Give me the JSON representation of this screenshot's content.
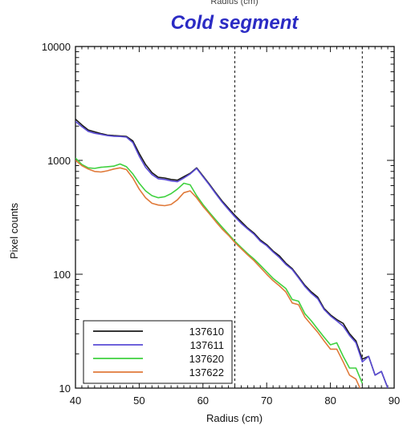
{
  "cut_off_text": "Radius (cm)",
  "chart_data": {
    "type": "line",
    "title": "Cold segment",
    "xlabel": "Radius (cm)",
    "ylabel": "Pixel counts",
    "xlim": [
      40,
      90
    ],
    "ylim": [
      10,
      10000
    ],
    "yscale": "log",
    "x_ticks": [
      40,
      50,
      60,
      70,
      80,
      90
    ],
    "y_ticks": [
      {
        "value": 10,
        "label": "10"
      },
      {
        "value": 100,
        "label": "100"
      },
      {
        "value": 1000,
        "label": "1000"
      },
      {
        "value": 10000,
        "label": "10000"
      }
    ],
    "vlines": [
      65,
      85
    ],
    "legend_position": "bottom-left",
    "series": [
      {
        "name": "137610",
        "color": "#1a1a1a",
        "x": [
          40,
          41,
          42,
          43,
          44,
          45,
          46,
          47,
          48,
          49,
          50,
          51,
          52,
          53,
          54,
          55,
          56,
          57,
          58,
          59,
          60,
          61,
          62,
          63,
          64,
          65,
          66,
          67,
          68,
          69,
          70,
          71,
          72,
          73,
          74,
          75,
          76,
          77,
          78,
          79,
          80,
          81,
          82,
          83,
          84,
          85,
          86,
          87,
          88,
          89
        ],
        "y": [
          2300,
          2050,
          1850,
          1780,
          1720,
          1670,
          1650,
          1640,
          1620,
          1480,
          1150,
          920,
          780,
          710,
          700,
          680,
          670,
          720,
          770,
          860,
          730,
          620,
          520,
          440,
          380,
          330,
          290,
          255,
          230,
          200,
          182,
          160,
          145,
          125,
          112,
          95,
          80,
          70,
          63,
          50,
          44,
          40,
          37,
          30,
          26,
          18,
          19,
          13,
          14,
          10
        ]
      },
      {
        "name": "137611",
        "color": "#5a4bd6",
        "x": [
          40,
          41,
          42,
          43,
          44,
          45,
          46,
          47,
          48,
          49,
          50,
          51,
          52,
          53,
          54,
          55,
          56,
          57,
          58,
          59,
          60,
          61,
          62,
          63,
          64,
          65,
          66,
          67,
          68,
          69,
          70,
          71,
          72,
          73,
          74,
          75,
          76,
          77,
          78,
          79,
          80,
          81,
          82,
          83,
          84,
          85,
          86,
          87,
          88,
          89
        ],
        "y": [
          2200,
          1980,
          1800,
          1730,
          1690,
          1650,
          1630,
          1620,
          1600,
          1430,
          1090,
          870,
          750,
          690,
          680,
          660,
          650,
          700,
          760,
          850,
          720,
          610,
          510,
          430,
          370,
          320,
          280,
          250,
          225,
          195,
          178,
          157,
          140,
          122,
          110,
          93,
          78,
          68,
          61,
          49,
          43,
          39,
          35,
          29,
          25,
          17,
          19,
          13,
          14,
          10
        ]
      },
      {
        "name": "137620",
        "color": "#3fd13f",
        "x": [
          40,
          41,
          42,
          43,
          44,
          45,
          46,
          47,
          48,
          49,
          50,
          51,
          52,
          53,
          54,
          55,
          56,
          57,
          58,
          59,
          60,
          61,
          62,
          63,
          64,
          65,
          66,
          67,
          68,
          69,
          70,
          71,
          72,
          73,
          74,
          75,
          76,
          77,
          78,
          79,
          80,
          81,
          82,
          83,
          84,
          85
        ],
        "y": [
          1050,
          920,
          860,
          850,
          870,
          880,
          890,
          930,
          880,
          760,
          630,
          540,
          490,
          470,
          480,
          510,
          560,
          630,
          610,
          490,
          410,
          350,
          300,
          260,
          225,
          195,
          172,
          152,
          136,
          120,
          105,
          92,
          83,
          75,
          60,
          58,
          45,
          39,
          33,
          28,
          24,
          25,
          19,
          15,
          15,
          11
        ]
      },
      {
        "name": "137622",
        "color": "#e07a3a",
        "x": [
          40,
          41,
          42,
          43,
          44,
          45,
          46,
          47,
          48,
          49,
          50,
          51,
          52,
          53,
          54,
          55,
          56,
          57,
          58,
          59,
          60,
          61,
          62,
          63,
          64,
          65,
          66,
          67,
          68,
          69,
          70,
          71,
          72,
          73,
          74,
          75,
          76,
          77,
          78,
          79,
          80,
          81,
          82,
          83,
          84,
          85
        ],
        "y": [
          1000,
          900,
          840,
          800,
          790,
          810,
          840,
          860,
          830,
          700,
          560,
          470,
          420,
          405,
          400,
          410,
          450,
          520,
          540,
          470,
          395,
          340,
          290,
          250,
          220,
          190,
          168,
          148,
          132,
          115,
          100,
          88,
          79,
          70,
          56,
          54,
          42,
          36,
          31,
          26,
          22,
          22,
          17,
          13,
          12,
          9
        ]
      }
    ]
  }
}
